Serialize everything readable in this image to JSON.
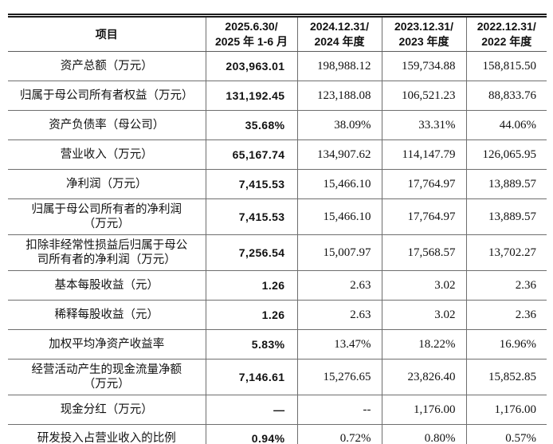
{
  "table": {
    "header": {
      "item_col": "项目",
      "period_cols": [
        "2025.6.30/\n2025 年 1-6 月",
        "2024.12.31/\n2024 年度",
        "2023.12.31/\n2023 年度",
        "2022.12.31/\n2022 年度"
      ]
    },
    "rows": [
      {
        "label": "资产总额（万元）",
        "values": [
          "203,963.01",
          "198,988.12",
          "159,734.88",
          "158,815.50"
        ]
      },
      {
        "label": "归属于母公司所有者权益（万元）",
        "values": [
          "131,192.45",
          "123,188.08",
          "106,521.23",
          "88,833.76"
        ]
      },
      {
        "label": "资产负债率（母公司）",
        "values": [
          "35.68%",
          "38.09%",
          "33.31%",
          "44.06%"
        ]
      },
      {
        "label": "营业收入（万元）",
        "values": [
          "65,167.74",
          "134,907.62",
          "114,147.79",
          "126,065.95"
        ]
      },
      {
        "label": "净利润（万元）",
        "values": [
          "7,415.53",
          "15,466.10",
          "17,764.97",
          "13,889.57"
        ]
      },
      {
        "label": "归属于母公司所有者的净利润\n（万元）",
        "values": [
          "7,415.53",
          "15,466.10",
          "17,764.97",
          "13,889.57"
        ]
      },
      {
        "label": "扣除非经常性损益后归属于母公\n司所有者的净利润（万元）",
        "values": [
          "7,256.54",
          "15,007.97",
          "17,568.57",
          "13,702.27"
        ]
      },
      {
        "label": "基本每股收益（元）",
        "values": [
          "1.26",
          "2.63",
          "3.02",
          "2.36"
        ]
      },
      {
        "label": "稀释每股收益（元）",
        "values": [
          "1.26",
          "2.63",
          "3.02",
          "2.36"
        ]
      },
      {
        "label": "加权平均净资产收益率",
        "values": [
          "5.83%",
          "13.47%",
          "18.22%",
          "16.96%"
        ]
      },
      {
        "label": "经营活动产生的现金流量净额\n（万元）",
        "values": [
          "7,146.61",
          "15,276.65",
          "23,826.40",
          "15,852.85"
        ]
      },
      {
        "label": "现金分红（万元）",
        "values": [
          "—",
          "--",
          "1,176.00",
          "1,176.00"
        ]
      },
      {
        "label": "研发投入占营业收入的比例",
        "values": [
          "0.94%",
          "0.72%",
          "0.80%",
          "0.57%"
        ]
      }
    ]
  }
}
